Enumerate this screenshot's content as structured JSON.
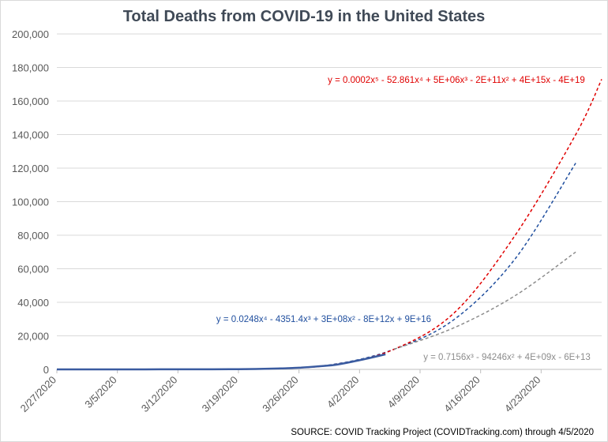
{
  "chart_data": {
    "type": "line",
    "title": "Total Deaths from COVID-19 in the United States",
    "xlabel": "",
    "ylabel": "",
    "ylim": [
      0,
      200000
    ],
    "yticks": [
      "0",
      "20,000",
      "40,000",
      "60,000",
      "80,000",
      "100,000",
      "120,000",
      "140,000",
      "160,000",
      "180,000",
      "200,000"
    ],
    "xlim": [
      "2/27/2020",
      "4/30/2020"
    ],
    "xticks": [
      "2/27/2020",
      "3/5/2020",
      "3/12/2020",
      "3/19/2020",
      "3/26/2020",
      "4/2/2020",
      "4/9/2020",
      "4/16/2020",
      "4/23/2020"
    ],
    "grid": true,
    "legend": "none",
    "series": [
      {
        "style": "solid",
        "color": "#3a5ba0",
        "x": [
          "2/27/2020",
          "2/29/2020",
          "3/2/2020",
          "3/4/2020",
          "3/6/2020",
          "3/8/2020",
          "3/10/2020",
          "3/12/2020",
          "3/14/2020",
          "3/16/2020",
          "3/18/2020",
          "3/20/2020",
          "3/22/2020",
          "3/24/2020",
          "3/26/2020",
          "3/28/2020",
          "3/30/2020",
          "4/1/2020",
          "4/3/2020",
          "4/5/2020"
        ],
        "values": [
          0,
          0,
          5,
          10,
          15,
          20,
          25,
          35,
          50,
          70,
          110,
          180,
          350,
          580,
          1000,
          1700,
          2600,
          4400,
          6600,
          9000
        ]
      },
      {
        "style": "dashed",
        "color": "#1f4e9e",
        "label": "y = 0.0248x⁴ - 4351.4x³ + 3E+08x² - 8E+12x + 9E+16",
        "x": [
          "3/16/2020",
          "3/23/2020",
          "3/30/2020",
          "4/6/2020",
          "4/13/2020",
          "4/20/2020",
          "4/27/2020"
        ],
        "values": [
          0,
          500,
          3000,
          12000,
          30000,
          66000,
          123000
        ]
      },
      {
        "style": "dashed",
        "color": "#e00000",
        "label": "y = 0.0002x⁵ - 52.861x⁴ + 5E+06x³ - 2E+11x² + 4E+15x - 4E+19",
        "x": [
          "3/16/2020",
          "3/23/2020",
          "3/30/2020",
          "4/6/2020",
          "4/13/2020",
          "4/20/2020",
          "4/27/2020",
          "4/30/2020"
        ],
        "values": [
          0,
          400,
          2800,
          12000,
          34000,
          80000,
          140000,
          173000
        ]
      },
      {
        "style": "dashed",
        "color": "#8c8c8c",
        "label": "y = 0.7156x³ - 94246x² + 4E+09x - 6E+13",
        "x": [
          "4/6/2020",
          "4/13/2020",
          "4/20/2020",
          "4/27/2020"
        ],
        "values": [
          12000,
          25000,
          44000,
          70000
        ]
      }
    ],
    "source": "SOURCE: COVID Tracking Project (COVIDTracking.com) through 4/5/2020"
  }
}
